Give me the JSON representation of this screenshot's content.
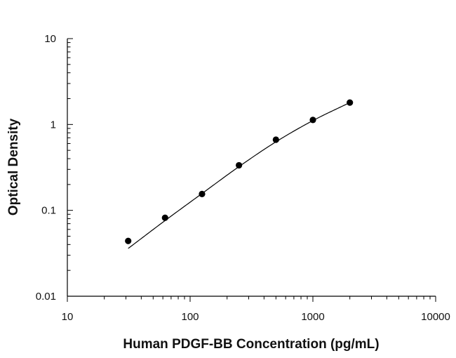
{
  "chart_data": {
    "type": "scatter",
    "title": "",
    "xlabel": "Human PDGF-BB Concentration (pg/mL)",
    "ylabel": "Optical Density",
    "x_scale": "log",
    "y_scale": "log",
    "xlim": [
      10,
      10000
    ],
    "ylim": [
      0.01,
      10
    ],
    "x_ticks": [
      10,
      100,
      1000,
      10000
    ],
    "x_tick_labels": [
      "10",
      "100",
      "1000",
      "10000"
    ],
    "y_ticks": [
      0.01,
      0.1,
      1,
      10
    ],
    "y_tick_labels": [
      "0.01",
      "0.1",
      "1",
      "10"
    ],
    "grid": false,
    "legend": "none",
    "series": [
      {
        "type": "scatter",
        "x": [
          31.3,
          62.5,
          125,
          250,
          500,
          1000,
          2000
        ],
        "y": [
          0.044,
          0.082,
          0.155,
          0.335,
          0.665,
          1.13,
          1.8
        ]
      },
      {
        "type": "line",
        "x": [
          31.3,
          62.5,
          125,
          250,
          500,
          1000,
          2000
        ],
        "y": [
          0.036,
          0.076,
          0.157,
          0.323,
          0.628,
          1.11,
          1.8
        ]
      }
    ],
    "colors": {
      "marker": "#000000",
      "line": "#000000",
      "axis": "#000000"
    }
  }
}
